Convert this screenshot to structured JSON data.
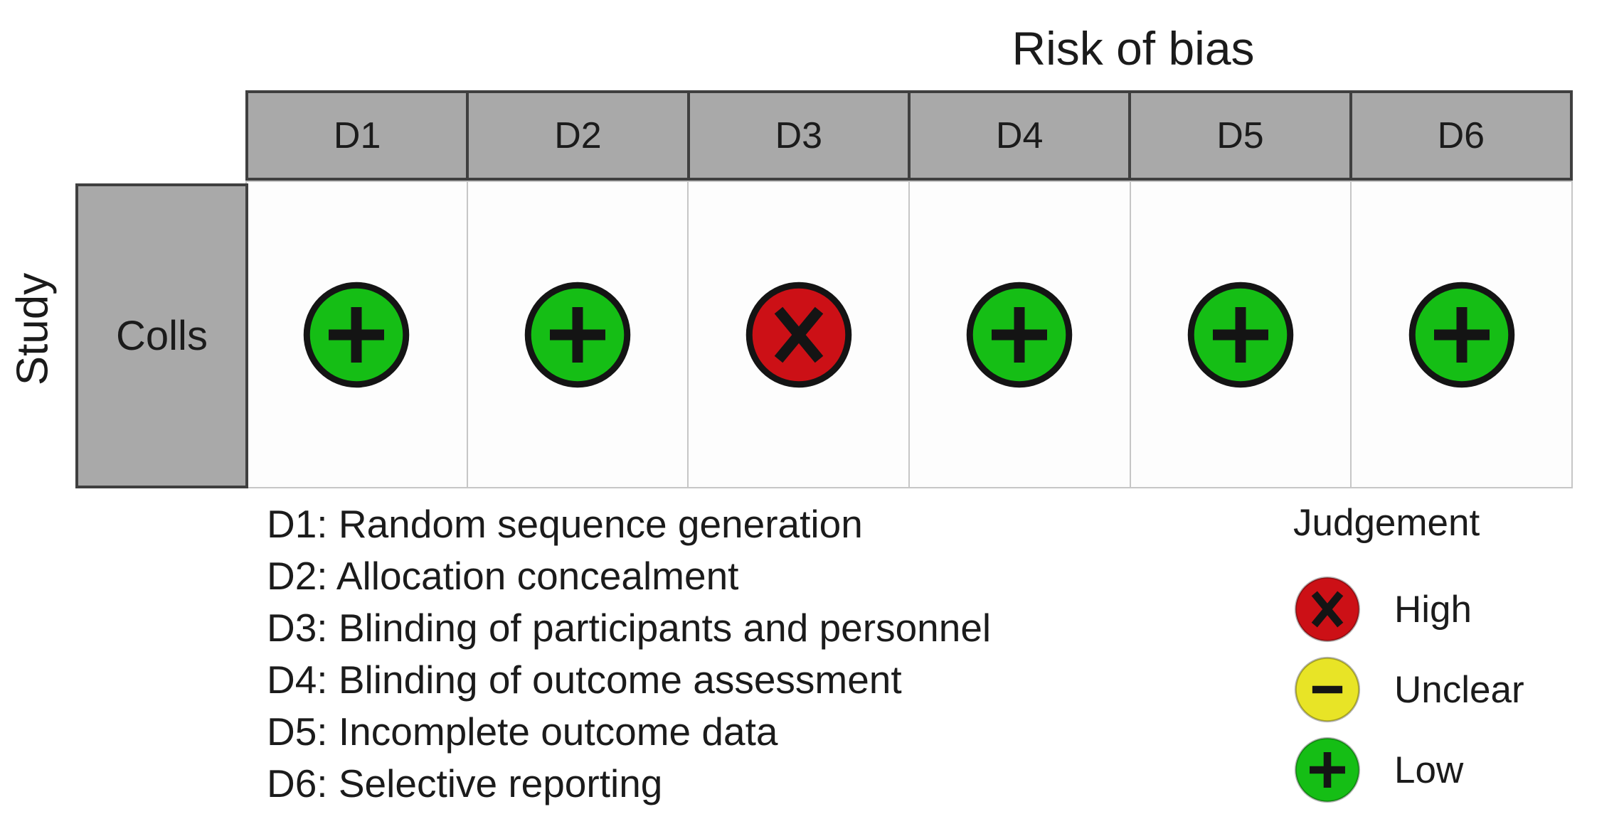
{
  "chart_data": {
    "type": "table",
    "title": "Risk of bias",
    "row_axis_label": "Study",
    "columns": [
      "D1",
      "D2",
      "D3",
      "D4",
      "D5",
      "D6"
    ],
    "rows": [
      "Colls"
    ],
    "values": [
      [
        "Low",
        "Low",
        "High",
        "Low",
        "Low",
        "Low"
      ]
    ],
    "symbols": {
      "High": "x",
      "Unclear": "-",
      "Low": "+"
    },
    "colors": {
      "High": "#cc1016",
      "Unclear": "#e8e426",
      "Low": "#15be15",
      "header_bg": "#a9a9a9",
      "header_border": "#3f3f3f",
      "symbol": "#141414",
      "cell_border": "#c6c6c6",
      "text": "#1b1b1b"
    },
    "domain_legend": [
      "D1: Random sequence generation",
      "D2: Allocation concealment",
      "D3: Blinding of participants and personnel",
      "D4: Blinding of outcome assessment",
      "D5: Incomplete outcome data",
      "D6: Selective reporting"
    ],
    "judgement_legend": {
      "title": "Judgement",
      "items": [
        {
          "level": "High"
        },
        {
          "level": "Unclear"
        },
        {
          "level": "Low"
        }
      ]
    }
  }
}
